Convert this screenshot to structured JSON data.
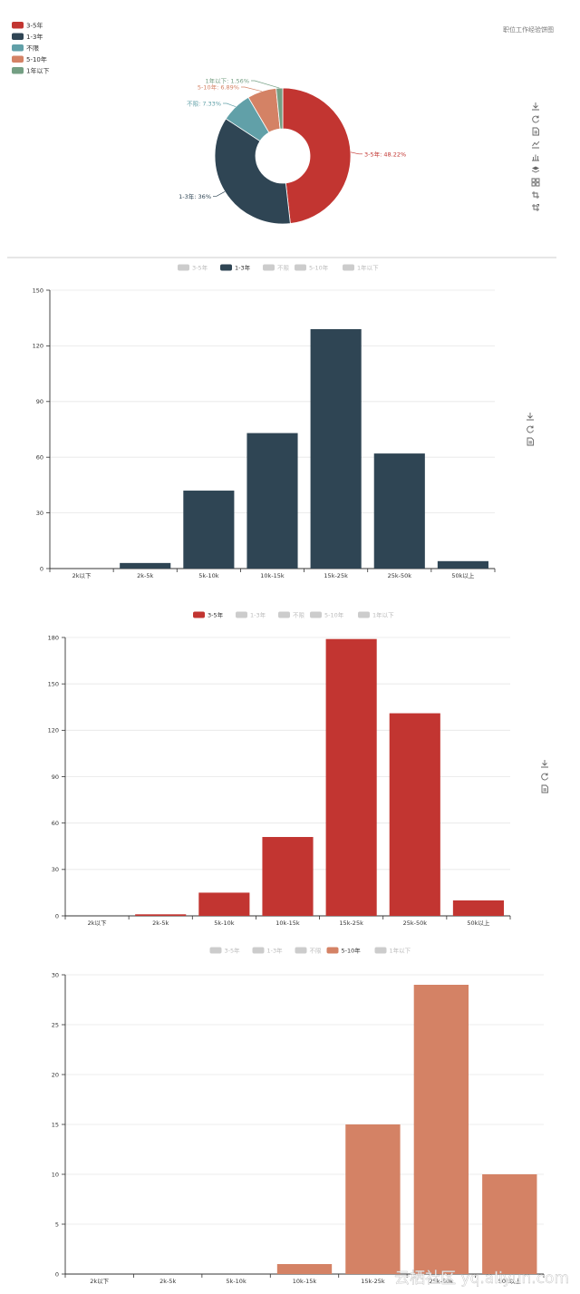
{
  "pie_title": "职位工作经验饼图",
  "legend_items": [
    "3-5年",
    "1-3年",
    "不限",
    "5-10年",
    "1年以下"
  ],
  "colors": {
    "3-5年": "#c23531",
    "1-3年": "#2f4554",
    "不限": "#61a0a8",
    "5-10年": "#d48265",
    "1年以下": "#749f83",
    "inactive": "#cccccc"
  },
  "toolbox_pie": [
    "download-icon",
    "refresh-icon",
    "data-view-icon",
    "line-chart-icon",
    "bar-chart-icon",
    "stack-icon",
    "tiled-icon",
    "zoom-icon",
    "zoom-reset-icon"
  ],
  "toolbox_bar": [
    "download-icon",
    "refresh-icon",
    "data-view-icon"
  ],
  "watermark": "云栖社区 yq.aliyun.com",
  "chart_data": [
    {
      "type": "pie",
      "title": "职位工作经验饼图",
      "legend_position": "top-left",
      "slices": [
        {
          "name": "3-5年",
          "value": 48.22,
          "label": "3-5年: 48.22%"
        },
        {
          "name": "1-3年",
          "value": 36,
          "label": "1-3年: 36%"
        },
        {
          "name": "不限",
          "value": 7.33,
          "label": "不限: 7.33%"
        },
        {
          "name": "5-10年",
          "value": 6.89,
          "label": "5-10年: 6.89%"
        },
        {
          "name": "1年以下",
          "value": 1.56,
          "label": "1年以下: 1.56%"
        }
      ]
    },
    {
      "type": "bar",
      "active_series": "1-3年",
      "categories": [
        "2k以下",
        "2k-5k",
        "5k-10k",
        "10k-15k",
        "15k-25k",
        "25k-50k",
        "50k以上"
      ],
      "values": [
        0,
        3,
        42,
        73,
        129,
        62,
        4
      ],
      "ylim": [
        0,
        150
      ],
      "yticks": [
        0,
        30,
        60,
        90,
        120,
        150
      ],
      "grid": true,
      "legend_position": "top-center"
    },
    {
      "type": "bar",
      "active_series": "3-5年",
      "categories": [
        "2k以下",
        "2k-5k",
        "5k-10k",
        "10k-15k",
        "15k-25k",
        "25k-50k",
        "50k以上"
      ],
      "values": [
        0,
        1,
        15,
        51,
        179,
        131,
        10
      ],
      "ylim": [
        0,
        180
      ],
      "yticks": [
        0,
        30,
        60,
        90,
        120,
        150,
        180
      ],
      "grid": true,
      "legend_position": "top-center"
    },
    {
      "type": "bar",
      "active_series": "5-10年",
      "categories": [
        "2k以下",
        "2k-5k",
        "5k-10k",
        "10k-15k",
        "15k-25k",
        "25k-50k",
        "50k以上"
      ],
      "values": [
        0,
        0,
        0,
        1,
        15,
        29,
        10
      ],
      "ylim": [
        0,
        30
      ],
      "yticks": [
        0,
        5,
        10,
        15,
        20,
        25,
        30
      ],
      "grid": true,
      "legend_position": "top-center"
    }
  ]
}
